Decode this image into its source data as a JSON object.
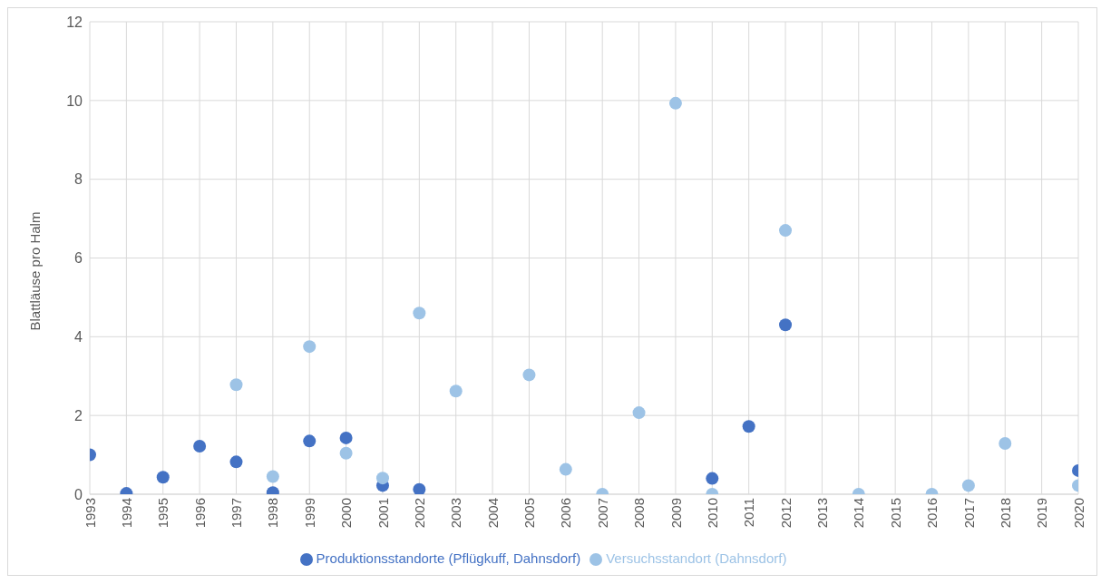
{
  "chart_data": {
    "type": "scatter",
    "ylabel": "Blattläuse pro Halm",
    "categories": [
      "1993",
      "1994",
      "1995",
      "1996",
      "1997",
      "1998",
      "1999",
      "2000",
      "2001",
      "2002",
      "2003",
      "2004",
      "2005",
      "2006",
      "2007",
      "2008",
      "2009",
      "2010",
      "2011",
      "2012",
      "2013",
      "2014",
      "2015",
      "2016",
      "2017",
      "2018",
      "2019",
      "2020"
    ],
    "series": [
      {
        "name": "Produktionsstandorte (Pflügkuff, Dahnsdorf)",
        "color": "#4472c4",
        "values": [
          1.0,
          0.02,
          0.43,
          1.22,
          0.82,
          0.04,
          1.35,
          1.43,
          0.22,
          0.12,
          null,
          null,
          null,
          null,
          null,
          null,
          null,
          0.4,
          1.72,
          4.3,
          null,
          null,
          null,
          null,
          null,
          null,
          null,
          0.6
        ]
      },
      {
        "name": "Versuchsstandort (Dahnsdorf)",
        "color": "#9dc3e6",
        "values": [
          null,
          null,
          null,
          null,
          2.78,
          0.45,
          3.75,
          1.04,
          0.41,
          4.6,
          2.62,
          null,
          3.03,
          0.63,
          0.0,
          2.07,
          9.93,
          0.0,
          null,
          6.7,
          null,
          0.0,
          null,
          0.0,
          0.22,
          1.29,
          null,
          0.22
        ]
      }
    ],
    "ylim": [
      0,
      12
    ],
    "yticks": [
      0,
      2,
      4,
      6,
      8,
      10,
      12
    ],
    "grid": true,
    "legend": "bottom",
    "marker": "circle"
  }
}
